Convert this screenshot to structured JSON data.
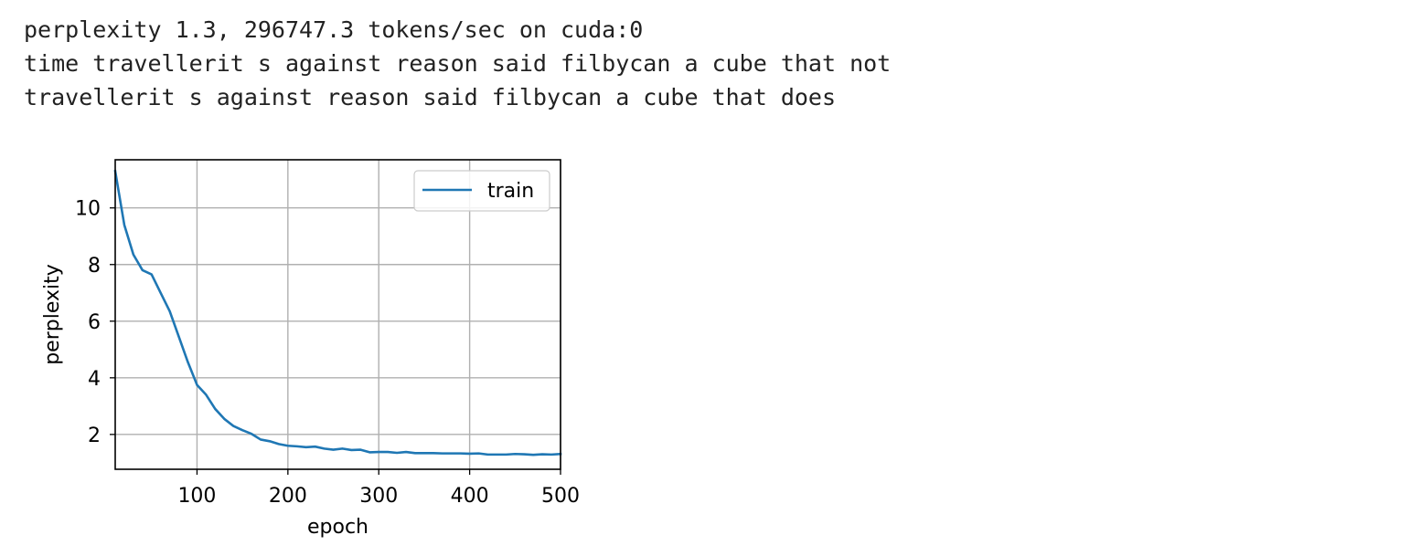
{
  "output_lines": [
    "perplexity 1.3, 296747.3 tokens/sec on cuda:0",
    "time travellerit s against reason said filbycan a cube that not",
    "travellerit s against reason said filbycan a cube that does"
  ],
  "chart_data": {
    "type": "line",
    "title": "",
    "xlabel": "epoch",
    "ylabel": "perplexity",
    "xlim": [
      10,
      500
    ],
    "ylim": [
      0.77,
      11.7
    ],
    "xticks": [
      100,
      200,
      300,
      400,
      500
    ],
    "yticks": [
      2,
      4,
      6,
      8,
      10
    ],
    "grid": true,
    "legend_position": "top-right",
    "series": [
      {
        "name": "train",
        "color": "#1f77b4",
        "x": [
          10,
          20,
          30,
          40,
          50,
          60,
          70,
          80,
          90,
          100,
          110,
          120,
          130,
          140,
          150,
          160,
          170,
          180,
          190,
          200,
          210,
          220,
          230,
          240,
          250,
          260,
          270,
          280,
          290,
          300,
          310,
          320,
          330,
          340,
          350,
          360,
          370,
          380,
          390,
          400,
          410,
          420,
          430,
          440,
          450,
          460,
          470,
          480,
          490,
          500
        ],
        "y": [
          11.3,
          9.4,
          8.35,
          7.8,
          7.65,
          7.0,
          6.35,
          5.45,
          4.55,
          3.75,
          3.4,
          2.9,
          2.55,
          2.3,
          2.15,
          2.02,
          1.82,
          1.76,
          1.66,
          1.6,
          1.58,
          1.55,
          1.57,
          1.5,
          1.46,
          1.5,
          1.45,
          1.46,
          1.37,
          1.38,
          1.38,
          1.35,
          1.38,
          1.34,
          1.34,
          1.34,
          1.33,
          1.33,
          1.33,
          1.32,
          1.33,
          1.29,
          1.29,
          1.29,
          1.31,
          1.3,
          1.28,
          1.3,
          1.29,
          1.31
        ]
      }
    ]
  }
}
